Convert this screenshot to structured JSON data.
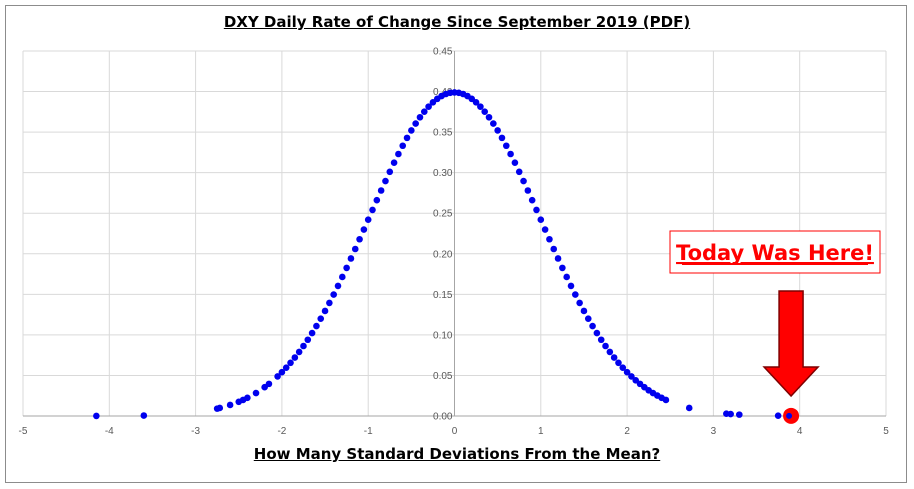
{
  "chart_data": {
    "type": "scatter",
    "title": "DXY Daily Rate of Change Since September 2019 (PDF)",
    "xlabel": "How Many Standard Deviations From the Mean?",
    "ylabel": "",
    "xlim": [
      -5,
      5
    ],
    "ylim": [
      0,
      0.45
    ],
    "x_ticks": [
      "-5",
      "-4",
      "-3",
      "-2",
      "-1",
      "0",
      "1",
      "2",
      "3",
      "4",
      "5"
    ],
    "y_ticks": [
      "0.00",
      "0.05",
      "0.10",
      "0.15",
      "0.20",
      "0.25",
      "0.30",
      "0.35",
      "0.40",
      "0.45"
    ],
    "grid": true,
    "series": [
      {
        "color": "#0000ee",
        "x": [
          -4.15,
          -3.6,
          -2.75,
          -2.72,
          -2.6,
          -2.5,
          -2.45,
          -2.4,
          -2.3,
          -2.2,
          -2.15,
          -2.05,
          -2.0,
          -1.95,
          -1.9,
          -1.85,
          -1.8,
          -1.75,
          -1.7,
          -1.65,
          -1.6,
          -1.55,
          -1.5,
          -1.45,
          -1.4,
          -1.35,
          -1.3,
          -1.25,
          -1.2,
          -1.15,
          -1.1,
          -1.05,
          -1.0,
          -0.95,
          -0.9,
          -0.85,
          -0.8,
          -0.75,
          -0.7,
          -0.65,
          -0.6,
          -0.55,
          -0.5,
          -0.45,
          -0.4,
          -0.35,
          -0.3,
          -0.25,
          -0.2,
          -0.15,
          -0.1,
          -0.05,
          0.0,
          0.05,
          0.1,
          0.15,
          0.2,
          0.25,
          0.3,
          0.35,
          0.4,
          0.45,
          0.5,
          0.55,
          0.6,
          0.65,
          0.7,
          0.75,
          0.8,
          0.85,
          0.9,
          0.95,
          1.0,
          1.05,
          1.1,
          1.15,
          1.2,
          1.25,
          1.3,
          1.35,
          1.4,
          1.45,
          1.5,
          1.55,
          1.6,
          1.65,
          1.7,
          1.75,
          1.8,
          1.85,
          1.9,
          1.95,
          2.0,
          2.05,
          2.1,
          2.15,
          2.2,
          2.25,
          2.3,
          2.35,
          2.4,
          2.45,
          2.72,
          3.15,
          3.2,
          3.3,
          3.75,
          3.85,
          3.88
        ],
        "y": [
          0.0001,
          0.0006,
          0.0091,
          0.0099,
          0.0136,
          0.0175,
          0.0198,
          0.0224,
          0.0283,
          0.0355,
          0.0396,
          0.0488,
          0.054,
          0.0596,
          0.0656,
          0.0721,
          0.079,
          0.0863,
          0.094,
          0.1023,
          0.1109,
          0.12,
          0.1295,
          0.1394,
          0.1497,
          0.1604,
          0.1714,
          0.1826,
          0.1942,
          0.2059,
          0.2179,
          0.2299,
          0.242,
          0.2541,
          0.2661,
          0.278,
          0.2897,
          0.3011,
          0.3123,
          0.323,
          0.3332,
          0.3429,
          0.3521,
          0.3605,
          0.3683,
          0.3752,
          0.3814,
          0.3867,
          0.391,
          0.3945,
          0.397,
          0.3984,
          0.3989,
          0.3984,
          0.397,
          0.3945,
          0.391,
          0.3867,
          0.3814,
          0.3752,
          0.3683,
          0.3605,
          0.3521,
          0.3429,
          0.3332,
          0.323,
          0.3123,
          0.3011,
          0.2897,
          0.278,
          0.2661,
          0.2541,
          0.242,
          0.2299,
          0.2179,
          0.2059,
          0.1942,
          0.1826,
          0.1714,
          0.1604,
          0.1497,
          0.1394,
          0.1295,
          0.12,
          0.1109,
          0.1023,
          0.094,
          0.0863,
          0.079,
          0.0721,
          0.0656,
          0.0596,
          0.054,
          0.0488,
          0.044,
          0.0396,
          0.0355,
          0.0317,
          0.0283,
          0.0252,
          0.0224,
          0.0198,
          0.0099,
          0.0028,
          0.0024,
          0.0017,
          0.0004,
          0.0002,
          0.0002
        ]
      }
    ],
    "highlight_point": {
      "x": 3.9,
      "y": 0.0002,
      "color": "#ff0000"
    },
    "annotation": {
      "text": "Today Was Here!",
      "color": "#ff0000",
      "arrow_color": "#ff0000"
    }
  }
}
